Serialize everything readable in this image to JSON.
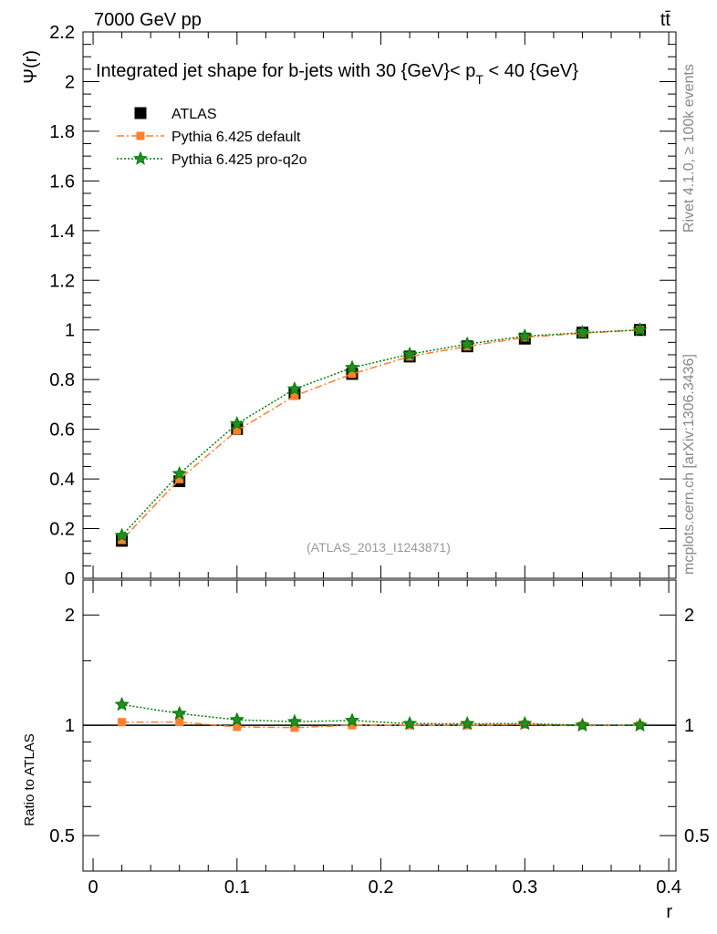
{
  "header": {
    "left": "7000 GeV pp",
    "right": "tt̄"
  },
  "side": {
    "top": "Rivet 4.1.0, ≥ 100k events",
    "bottom": "mcplots.cern.ch [arXiv:1306.3436]"
  },
  "colors": {
    "atlas": "#000000",
    "default": "#ff7f2a",
    "proq2o": "#008000"
  },
  "chart_data": {
    "type": "line",
    "title": "Integrated jet shape for b-jets with 30 {GeV}< p_T < 40 {GeV}",
    "title_main": "Integrated jet shape for b-jets with 30 {GeV}< p",
    "title_sub": "T",
    "title_end": " < 40 {GeV}",
    "watermark": "(ATLAS_2013_I1243871)",
    "xlabel": "r",
    "ylabel": "Ψ(r)",
    "ratio_ylabel": "Ratio to ATLAS",
    "xlim": [
      -0.007,
      0.405
    ],
    "ylim": [
      0,
      2.2
    ],
    "ratio_ylim": [
      0.4,
      2.49
    ],
    "xticks": [
      "0",
      "0.1",
      "0.2",
      "0.3",
      "0.4"
    ],
    "yticks": [
      "0",
      "0.2",
      "0.4",
      "0.6",
      "0.8",
      "1",
      "1.2",
      "1.4",
      "1.6",
      "1.8",
      "2",
      "2.2"
    ],
    "ratio_yticks": [
      "0.5",
      "1",
      "2"
    ],
    "x": [
      0.02,
      0.06,
      0.1,
      0.14,
      0.18,
      0.22,
      0.26,
      0.3,
      0.34,
      0.38
    ],
    "legend_position": "top-left",
    "series": [
      {
        "name": "ATLAS",
        "values": [
          0.151,
          0.391,
          0.601,
          0.745,
          0.823,
          0.893,
          0.934,
          0.965,
          0.989,
          1.0
        ]
      },
      {
        "name": "Pythia 6.425 default",
        "values": [
          0.154,
          0.399,
          0.595,
          0.734,
          0.823,
          0.893,
          0.934,
          0.97,
          0.987,
          1.0
        ]
      },
      {
        "name": "Pythia 6.425 pro-q2o",
        "values": [
          0.172,
          0.421,
          0.622,
          0.762,
          0.848,
          0.902,
          0.943,
          0.975,
          0.989,
          1.0
        ]
      }
    ]
  }
}
